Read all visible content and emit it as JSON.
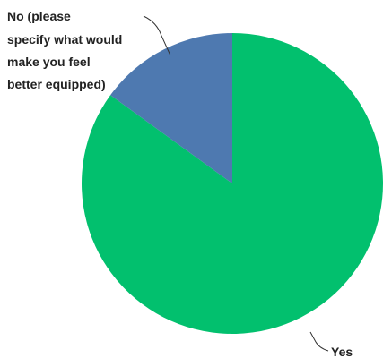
{
  "chart_data": {
    "type": "pie",
    "slices": [
      {
        "label": "Yes",
        "value": 85,
        "color": "#02C06E"
      },
      {
        "label": "No (please specify what would make you feel better equipped)",
        "value": 15,
        "color": "#4E79B0"
      }
    ],
    "title": "",
    "legend": "none",
    "start_angle_deg": 0,
    "direction": "clockwise"
  },
  "labels": {
    "yes": "Yes",
    "no_lines": [
      "No (please",
      "specify what would",
      "make you feel",
      "better equipped)"
    ]
  }
}
